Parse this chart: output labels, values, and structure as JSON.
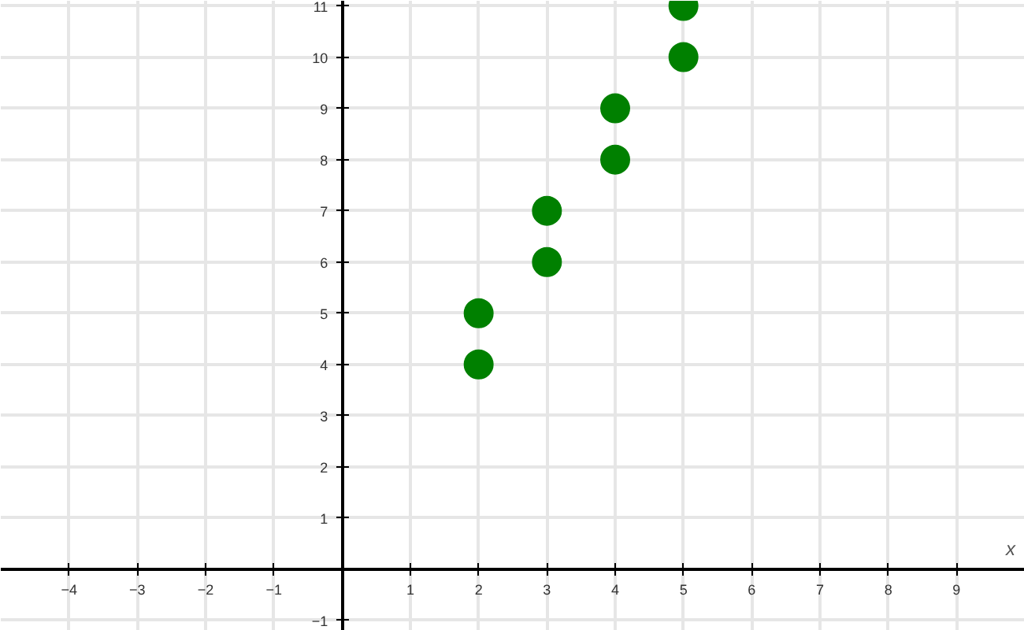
{
  "chart_data": {
    "type": "scatter",
    "xlabel": "x",
    "x": [
      2,
      2,
      3,
      3,
      4,
      4,
      5,
      5
    ],
    "series": [
      {
        "color": "#008000",
        "values": [
          4,
          5,
          6,
          7,
          8,
          9,
          10,
          11
        ]
      }
    ],
    "xlim": [
      -5,
      10
    ],
    "ylim": [
      -1.2,
      11.1
    ],
    "xticks": [
      -4,
      -3,
      -2,
      -1,
      1,
      2,
      3,
      4,
      5,
      6,
      7,
      8,
      9
    ],
    "yticks": [
      -1,
      1,
      2,
      3,
      4,
      5,
      6,
      7,
      8,
      9,
      10,
      11
    ],
    "grid": true,
    "marker": "circle"
  }
}
